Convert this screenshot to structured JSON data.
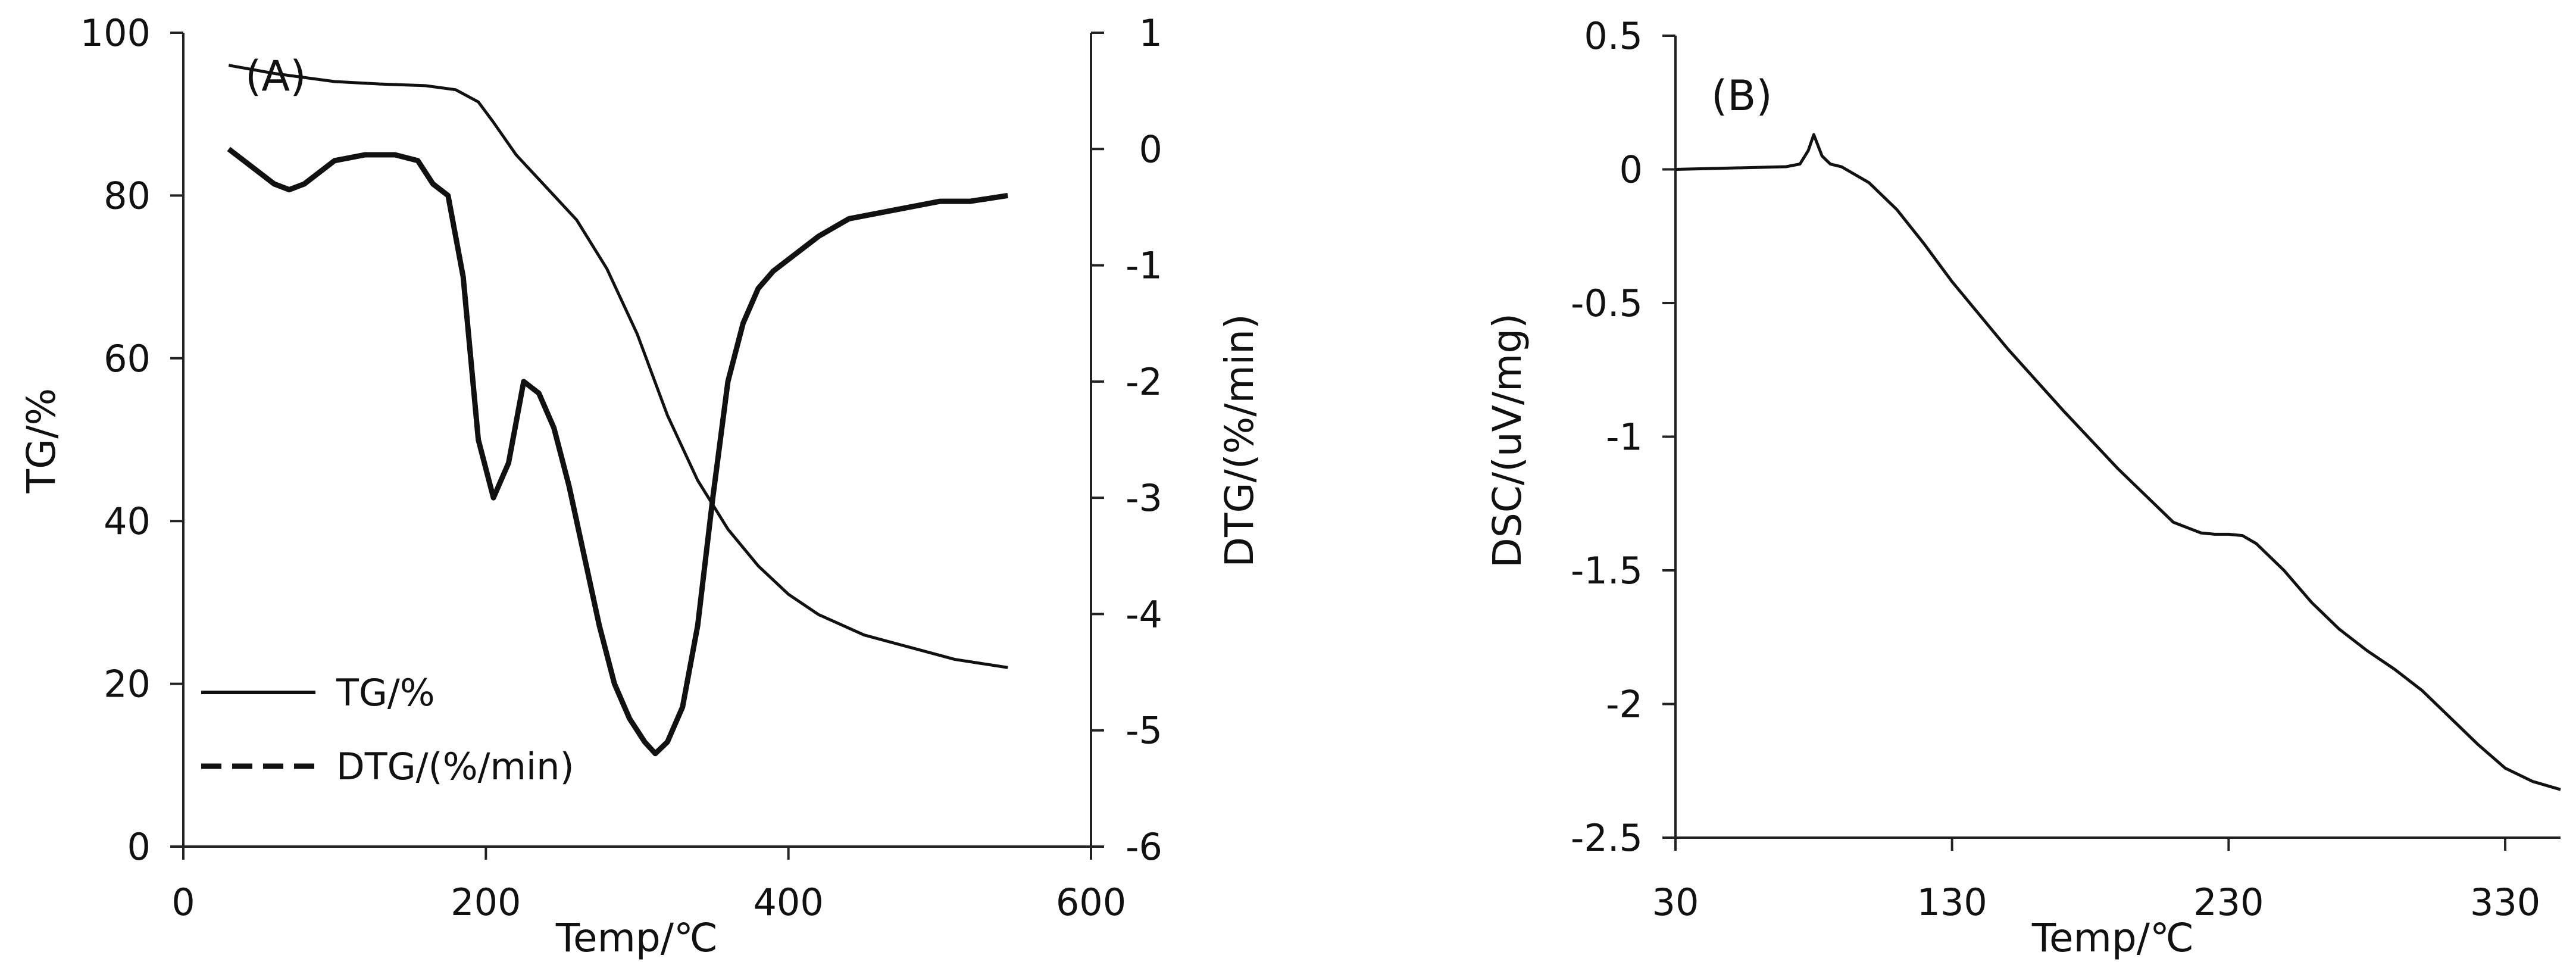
{
  "chart_data": [
    {
      "type": "line",
      "panel_label": "(A)",
      "xlabel": "Temp/℃",
      "ylabel": "TG/%",
      "y2label": "DTG/(%/min)",
      "xlim": [
        0,
        600
      ],
      "ylim": [
        0,
        100
      ],
      "y2lim": [
        -6,
        1
      ],
      "x_ticks": [
        "0",
        "200",
        "400",
        "600"
      ],
      "y_ticks": [
        "0",
        "20",
        "40",
        "60",
        "80",
        "100"
      ],
      "y2_ticks": [
        "-6",
        "-5",
        "-4",
        "-3",
        "-2",
        "-1",
        "0",
        "1"
      ],
      "grid": false,
      "legend_position": "bottom-left",
      "legend": [
        {
          "label": "TG/%",
          "style": "solid"
        },
        {
          "label": "DTG/(%/min)",
          "style": "dashed"
        }
      ],
      "series": [
        {
          "name": "TG/%",
          "axis": "left",
          "x": [
            30,
            60,
            100,
            130,
            160,
            180,
            195,
            205,
            220,
            240,
            260,
            280,
            300,
            320,
            340,
            360,
            380,
            400,
            420,
            450,
            480,
            510,
            545
          ],
          "values": [
            96,
            95,
            94,
            93.7,
            93.5,
            93,
            91.5,
            89,
            85,
            81,
            77,
            71,
            63,
            53,
            45,
            39,
            34.5,
            31,
            28.5,
            26,
            24.5,
            23,
            22
          ]
        },
        {
          "name": "DTG/(%/min)",
          "axis": "right",
          "x": [
            30,
            40,
            50,
            60,
            70,
            80,
            90,
            100,
            120,
            140,
            155,
            165,
            175,
            185,
            195,
            205,
            215,
            225,
            235,
            245,
            255,
            265,
            275,
            285,
            295,
            305,
            312,
            320,
            330,
            340,
            350,
            360,
            370,
            380,
            390,
            400,
            420,
            440,
            460,
            480,
            500,
            520,
            545
          ],
          "values": [
            0,
            -0.1,
            -0.2,
            -0.3,
            -0.35,
            -0.3,
            -0.2,
            -0.1,
            -0.05,
            -0.05,
            -0.1,
            -0.3,
            -0.4,
            -1.1,
            -2.5,
            -3.0,
            -2.7,
            -2.0,
            -2.1,
            -2.4,
            -2.9,
            -3.5,
            -4.1,
            -4.6,
            -4.9,
            -5.1,
            -5.2,
            -5.1,
            -4.8,
            -4.1,
            -3.0,
            -2.0,
            -1.5,
            -1.2,
            -1.05,
            -0.95,
            -0.75,
            -0.6,
            -0.55,
            -0.5,
            -0.45,
            -0.45,
            -0.4
          ]
        }
      ]
    },
    {
      "type": "line",
      "panel_label": "(B)",
      "xlabel": "Temp/℃",
      "ylabel": "DSC/(uV/mg)",
      "xlim": [
        30,
        350
      ],
      "ylim": [
        -2.5,
        0.5
      ],
      "x_ticks": [
        "30",
        "130",
        "230",
        "330"
      ],
      "y_ticks": [
        "-2.5",
        "-2",
        "-1.5",
        "-1",
        "-0.5",
        "0",
        "0.5"
      ],
      "grid": false,
      "series": [
        {
          "x": [
            30,
            50,
            70,
            75,
            78,
            80,
            83,
            86,
            90,
            100,
            110,
            120,
            130,
            150,
            170,
            190,
            210,
            220,
            225,
            230,
            235,
            240,
            250,
            260,
            270,
            280,
            290,
            300,
            310,
            320,
            330,
            340,
            350
          ],
          "values": [
            0,
            0.005,
            0.01,
            0.02,
            0.07,
            0.13,
            0.05,
            0.02,
            0.01,
            -0.05,
            -0.15,
            -0.28,
            -0.42,
            -0.67,
            -0.9,
            -1.12,
            -1.32,
            -1.36,
            -1.365,
            -1.365,
            -1.37,
            -1.4,
            -1.5,
            -1.62,
            -1.72,
            -1.8,
            -1.87,
            -1.95,
            -2.05,
            -2.15,
            -2.24,
            -2.29,
            -2.32
          ]
        }
      ]
    }
  ]
}
